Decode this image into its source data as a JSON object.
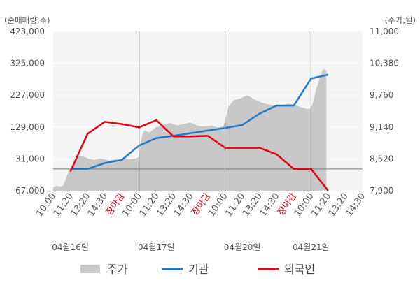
{
  "chart_data": {
    "type": "line",
    "left_axis_title": "(순매매량,주)",
    "right_axis_title": "(주가,원)",
    "left_ticks": [
      "423,000",
      "325,000",
      "227,000",
      "129,000",
      "31,000",
      "-67,000"
    ],
    "left_tick_values": [
      423000,
      325000,
      227000,
      129000,
      31000,
      -67000
    ],
    "left_range": [
      -67000,
      423000
    ],
    "right_ticks": [
      "11,000",
      "10,380",
      "9,760",
      "9,140",
      "8,520",
      "7,900"
    ],
    "right_tick_values": [
      11000,
      10380,
      9760,
      9140,
      8520,
      7900
    ],
    "right_range": [
      7900,
      11000
    ],
    "x_labels": [
      "10:00",
      "11:20",
      "13:20",
      "14:30",
      "장마감",
      "10:00",
      "11:20",
      "13:20",
      "14:30",
      "장마감",
      "10:00",
      "11:20",
      "13:20",
      "14:30",
      "장마감",
      "10:00",
      "11:20",
      "13:20",
      "14:30"
    ],
    "x_label_is_close": [
      false,
      false,
      false,
      false,
      true,
      false,
      false,
      false,
      false,
      true,
      false,
      false,
      false,
      false,
      true,
      false,
      false,
      false,
      false
    ],
    "dates": [
      {
        "label": "04월16일",
        "slot": 1
      },
      {
        "label": "04월17일",
        "slot": 6
      },
      {
        "label": "04월20일",
        "slot": 11
      },
      {
        "label": "04월21일",
        "slot": 15
      }
    ],
    "day_boundaries": [
      5,
      10,
      15
    ],
    "zero_line_value": 0,
    "legend": [
      {
        "name": "주가",
        "color": "#c8c8c8",
        "kind": "area"
      },
      {
        "name": "기관",
        "color": "#1c7ac8",
        "kind": "line"
      },
      {
        "name": "외국인",
        "color": "#e60012",
        "kind": "line"
      }
    ],
    "series": [
      {
        "name": "기관",
        "color": "#1c7ac8",
        "axis": "left",
        "x": [
          1,
          2,
          3,
          4,
          5,
          6,
          7,
          8,
          9,
          10,
          11,
          12,
          13,
          14,
          15,
          16
        ],
        "values": [
          0,
          0,
          18000,
          28000,
          72000,
          95000,
          102000,
          110000,
          118000,
          126000,
          135000,
          170000,
          195000,
          195000,
          278000,
          290000
        ]
      },
      {
        "name": "외국인",
        "color": "#e60012",
        "axis": "left",
        "x": [
          1,
          2,
          3,
          4,
          5,
          6,
          7,
          8,
          9,
          10,
          11,
          12,
          13,
          14,
          15,
          16
        ],
        "values": [
          -8000,
          108000,
          145000,
          138000,
          128000,
          150000,
          100000,
          100000,
          102000,
          65000,
          65000,
          65000,
          45000,
          0,
          0,
          -67000
        ]
      },
      {
        "name": "주가",
        "color": "#c8c8c8",
        "axis": "right",
        "kind": "area",
        "x": [
          0.0,
          0.2,
          0.4,
          0.6,
          0.9,
          1.2,
          1.5,
          1.8,
          2.1,
          2.4,
          2.7,
          3.0,
          3.3,
          3.6,
          3.9,
          4.2,
          4.5,
          4.8,
          5.0,
          5.15,
          5.3,
          5.6,
          6.0,
          6.4,
          6.8,
          7.2,
          7.6,
          8.0,
          8.4,
          8.8,
          9.2,
          9.6,
          9.9,
          10.0,
          10.2,
          10.5,
          10.9,
          11.3,
          11.7,
          12.1,
          12.5,
          12.9,
          13.3,
          13.7,
          14.1,
          14.5,
          14.8,
          15.0,
          15.1,
          15.3,
          15.5,
          15.7,
          15.9
        ],
        "values": [
          7960,
          8000,
          7980,
          8010,
          8280,
          8420,
          8580,
          8560,
          8520,
          8500,
          8530,
          8510,
          8490,
          8510,
          8500,
          8520,
          8510,
          8530,
          8560,
          8950,
          9080,
          9030,
          9140,
          9180,
          9220,
          9170,
          9200,
          9230,
          9160,
          9150,
          9170,
          9130,
          9160,
          9260,
          9540,
          9660,
          9700,
          9760,
          9680,
          9620,
          9580,
          9550,
          9560,
          9600,
          9560,
          9520,
          9490,
          9510,
          9600,
          9880,
          10080,
          10270,
          10240
        ]
      }
    ]
  }
}
